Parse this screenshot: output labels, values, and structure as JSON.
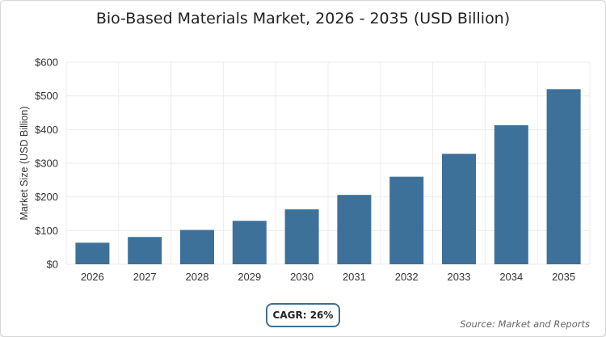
{
  "chart_data": {
    "type": "bar",
    "title": "Bio-Based Materials Market, 2026 - 2035 (USD Billion)",
    "categories": [
      "2026",
      "2027",
      "2028",
      "2029",
      "2030",
      "2031",
      "2032",
      "2033",
      "2034",
      "2035"
    ],
    "values": [
      64,
      81,
      102,
      129,
      163,
      206,
      260,
      328,
      413,
      520
    ],
    "xlabel": "",
    "ylabel": "Market Size (USD Billion)",
    "ylim": [
      0,
      600
    ],
    "yticks": [
      "$0",
      "$100",
      "$200",
      "$300",
      "$400",
      "$500",
      "$600"
    ],
    "bar_color": "#3d7199",
    "grid": true
  },
  "cagr_label": "CAGR: 26%",
  "source_label": "Source: Market and Reports"
}
